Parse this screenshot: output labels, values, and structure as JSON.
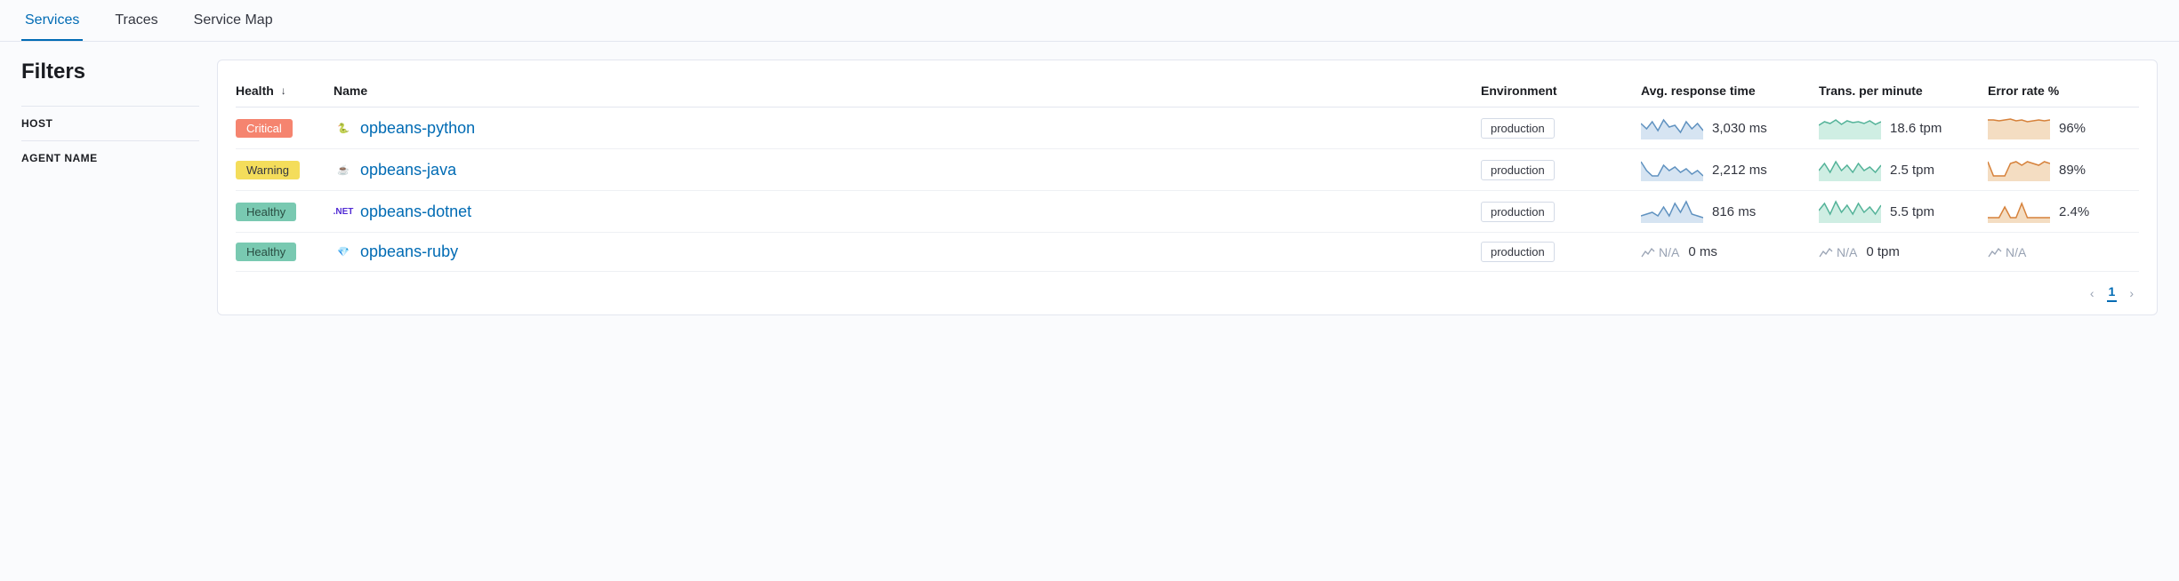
{
  "tabs": [
    {
      "label": "Services",
      "active": true
    },
    {
      "label": "Traces",
      "active": false
    },
    {
      "label": "Service Map",
      "active": false
    }
  ],
  "filters": {
    "title": "Filters",
    "groups": [
      "HOST",
      "AGENT NAME"
    ]
  },
  "table": {
    "columns": {
      "health": "Health",
      "name": "Name",
      "environment": "Environment",
      "avg_response": "Avg. response time",
      "tpm": "Trans. per minute",
      "error_rate": "Error rate %"
    },
    "sort_column": "health",
    "rows": [
      {
        "health": {
          "label": "Critical",
          "level": "critical",
          "bg": "#f5846f",
          "fg": "#ffffff"
        },
        "lang": {
          "id": "python",
          "glyph": "🐍"
        },
        "name": "opbeans-python",
        "environment": "production",
        "avg_response": {
          "value": "3,030 ms",
          "spark": {
            "points": [
              8,
              14,
              6,
              16,
              4,
              12,
              10,
              18,
              6,
              14,
              8,
              16
            ],
            "stroke": "#6092c0",
            "fill": "#d6e4f2"
          }
        },
        "tpm": {
          "value": "18.6 tpm",
          "spark": {
            "points": [
              10,
              6,
              8,
              4,
              9,
              5,
              7,
              6,
              8,
              5,
              9,
              6
            ],
            "stroke": "#54b399",
            "fill": "#cfeee3"
          }
        },
        "error_rate": {
          "value": "96%",
          "spark": {
            "points": [
              4,
              4,
              5,
              4,
              3,
              5,
              4,
              6,
              5,
              4,
              5,
              4
            ],
            "stroke": "#d6813a",
            "fill": "#f4ddc2"
          }
        }
      },
      {
        "health": {
          "label": "Warning",
          "level": "warning",
          "bg": "#f4dd5b",
          "fg": "#343741"
        },
        "lang": {
          "id": "java",
          "glyph": "☕"
        },
        "name": "opbeans-java",
        "environment": "production",
        "avg_response": {
          "value": "2,212 ms",
          "spark": {
            "points": [
              4,
              14,
              20,
              20,
              8,
              14,
              10,
              16,
              12,
              18,
              14,
              20
            ],
            "stroke": "#6092c0",
            "fill": "#d6e4f2"
          }
        },
        "tpm": {
          "value": "2.5 tpm",
          "spark": {
            "points": [
              14,
              6,
              16,
              4,
              14,
              8,
              16,
              6,
              14,
              10,
              16,
              8
            ],
            "stroke": "#54b399",
            "fill": "#cfeee3"
          }
        },
        "error_rate": {
          "value": "89%",
          "spark": {
            "points": [
              4,
              20,
              20,
              20,
              6,
              4,
              8,
              4,
              6,
              8,
              4,
              6
            ],
            "stroke": "#d6813a",
            "fill": "#f4ddc2"
          }
        }
      },
      {
        "health": {
          "label": "Healthy",
          "level": "healthy",
          "bg": "#79c9b1",
          "fg": "#2a4d42"
        },
        "lang": {
          "id": "dotnet",
          "glyph": ".NET"
        },
        "name": "opbeans-dotnet",
        "environment": "production",
        "avg_response": {
          "value": "816 ms",
          "spark": {
            "points": [
              18,
              16,
              14,
              18,
              8,
              18,
              4,
              14,
              2,
              16,
              18,
              20
            ],
            "stroke": "#6092c0",
            "fill": "#d6e4f2"
          }
        },
        "tpm": {
          "value": "5.5 tpm",
          "spark": {
            "points": [
              12,
              4,
              16,
              2,
              14,
              6,
              16,
              4,
              14,
              8,
              16,
              6
            ],
            "stroke": "#54b399",
            "fill": "#cfeee3"
          }
        },
        "error_rate": {
          "value": "2.4%",
          "spark": {
            "points": [
              20,
              20,
              20,
              8,
              20,
              20,
              4,
              20,
              20,
              20,
              20,
              20
            ],
            "stroke": "#d6813a",
            "fill": "#f4ddc2"
          }
        }
      },
      {
        "health": {
          "label": "Healthy",
          "level": "healthy",
          "bg": "#79c9b1",
          "fg": "#2a4d42"
        },
        "lang": {
          "id": "ruby",
          "glyph": "💎"
        },
        "name": "opbeans-ruby",
        "environment": "production",
        "avg_response": {
          "value": "0 ms",
          "na": "N/A"
        },
        "tpm": {
          "value": "0 tpm",
          "na": "N/A"
        },
        "error_rate": {
          "na": "N/A"
        }
      }
    ]
  },
  "pagination": {
    "current": "1"
  },
  "colors": {
    "link": "#006bb4",
    "border": "#e3e6ef",
    "bg_page": "#fafbfd",
    "bg_panel": "#ffffff"
  }
}
